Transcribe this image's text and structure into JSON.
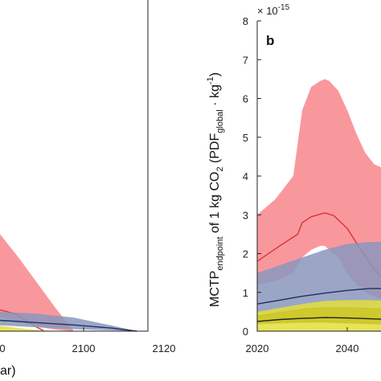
{
  "chart_data": [
    {
      "panel": "a",
      "type": "area",
      "xlabel": "ar)",
      "x_ticks": [
        "2100",
        "2120"
      ],
      "x_tick_partial": "0",
      "xlim": [
        2080,
        2120
      ],
      "ylim": [
        0,
        8
      ],
      "series": [
        {
          "role": "band",
          "color": "#f7868c",
          "x": [
            2080,
            2085,
            2090,
            2095,
            2100
          ],
          "upper": [
            2.5,
            1.9,
            1.25,
            0.6,
            0.0
          ],
          "lower": [
            0.35,
            0.25,
            0.12,
            0.04,
            0.0
          ]
        },
        {
          "role": "line",
          "color": "#dd3333",
          "x": [
            2080,
            2084,
            2087,
            2090,
            2092
          ],
          "values": [
            0.55,
            0.45,
            0.28,
            0.1,
            0.0
          ]
        },
        {
          "role": "band",
          "color": "#8a97bd",
          "x": [
            2080,
            2090,
            2100,
            2110,
            2117
          ],
          "upper": [
            0.5,
            0.45,
            0.35,
            0.15,
            0.0
          ],
          "lower": [
            0.15,
            0.1,
            0.05,
            0.02,
            0.0
          ]
        },
        {
          "role": "line",
          "color": "#1f2f5f",
          "x": [
            2080,
            2090,
            2100,
            2110,
            2117
          ],
          "values": [
            0.28,
            0.22,
            0.16,
            0.08,
            0.0
          ]
        },
        {
          "role": "band",
          "color": "#e3de3d",
          "x": [
            2080,
            2085,
            2090,
            2095
          ],
          "upper": [
            0.14,
            0.08,
            0.03,
            0.0
          ],
          "lower": [
            0.0,
            0.0,
            0.0,
            0.0
          ]
        }
      ]
    },
    {
      "panel": "b",
      "panel_label": "b",
      "type": "area",
      "ylabel": "MCTP",
      "ylabel_sub1": "endpoint",
      "ylabel_mid": " of 1 kg CO",
      "ylabel_sub2": "2",
      "ylabel_mid2": " (PDF",
      "ylabel_sub3": "global",
      "ylabel_mid3": " · kg",
      "ylabel_sup": "-1",
      "ylabel_end": ")",
      "y_exponent_base": "× 10",
      "y_exponent_power": "-15",
      "y_ticks": [
        "0",
        "1",
        "2",
        "3",
        "4",
        "5",
        "6",
        "7",
        "8"
      ],
      "x_ticks": [
        "2020",
        "2040"
      ],
      "xlim": [
        2020,
        2060
      ],
      "ylim": [
        0,
        8
      ],
      "series": [
        {
          "role": "band",
          "color": "#f7868c",
          "x": [
            2020,
            2024,
            2028,
            2030,
            2032,
            2034,
            2035,
            2036,
            2038,
            2040,
            2042,
            2044,
            2046,
            2048,
            2050
          ],
          "upper": [
            3.0,
            3.4,
            4.0,
            5.7,
            6.3,
            6.45,
            6.5,
            6.45,
            6.2,
            5.7,
            5.1,
            4.6,
            4.3,
            4.2,
            4.1
          ],
          "lower": [
            1.2,
            1.3,
            1.5,
            1.9,
            2.1,
            2.2,
            2.2,
            2.1,
            1.9,
            1.5,
            1.2,
            1.0,
            0.9,
            0.8,
            0.75
          ]
        },
        {
          "role": "line",
          "color": "#dd3333",
          "x": [
            2020,
            2025,
            2029,
            2030,
            2032,
            2035,
            2037,
            2040,
            2043,
            2046,
            2048,
            2050
          ],
          "values": [
            1.8,
            2.2,
            2.5,
            2.8,
            2.95,
            3.05,
            2.98,
            2.65,
            2.1,
            1.6,
            1.35,
            1.2
          ]
        },
        {
          "role": "band",
          "color": "#8a97bd",
          "x": [
            2020,
            2025,
            2030,
            2035,
            2040,
            2045,
            2050
          ],
          "upper": [
            1.5,
            1.7,
            1.9,
            2.1,
            2.25,
            2.3,
            2.3
          ],
          "lower": [
            0.45,
            0.5,
            0.55,
            0.6,
            0.6,
            0.58,
            0.55
          ]
        },
        {
          "role": "line",
          "color": "#1f2f5f",
          "x": [
            2020,
            2025,
            2030,
            2035,
            2040,
            2045,
            2050
          ],
          "values": [
            0.7,
            0.8,
            0.9,
            0.98,
            1.05,
            1.1,
            1.1
          ]
        },
        {
          "role": "band",
          "color": "#e3de3d",
          "x": [
            2020,
            2025,
            2030,
            2035,
            2040,
            2045,
            2050
          ],
          "upper": [
            0.5,
            0.6,
            0.7,
            0.78,
            0.8,
            0.8,
            0.78
          ],
          "lower": [
            0.0,
            0.0,
            0.0,
            0.0,
            0.0,
            0.0,
            0.0
          ]
        },
        {
          "role": "band",
          "color": "#c9c425",
          "x": [
            2020,
            2025,
            2030,
            2035,
            2040,
            2045,
            2050
          ],
          "upper": [
            0.42,
            0.5,
            0.58,
            0.62,
            0.62,
            0.6,
            0.58
          ],
          "lower": [
            0.18,
            0.2,
            0.22,
            0.22,
            0.2,
            0.18,
            0.16
          ]
        },
        {
          "role": "line",
          "color": "#222222",
          "x": [
            2020,
            2025,
            2030,
            2035,
            2040,
            2045,
            2050
          ],
          "values": [
            0.25,
            0.3,
            0.33,
            0.35,
            0.34,
            0.32,
            0.3
          ]
        }
      ]
    }
  ]
}
